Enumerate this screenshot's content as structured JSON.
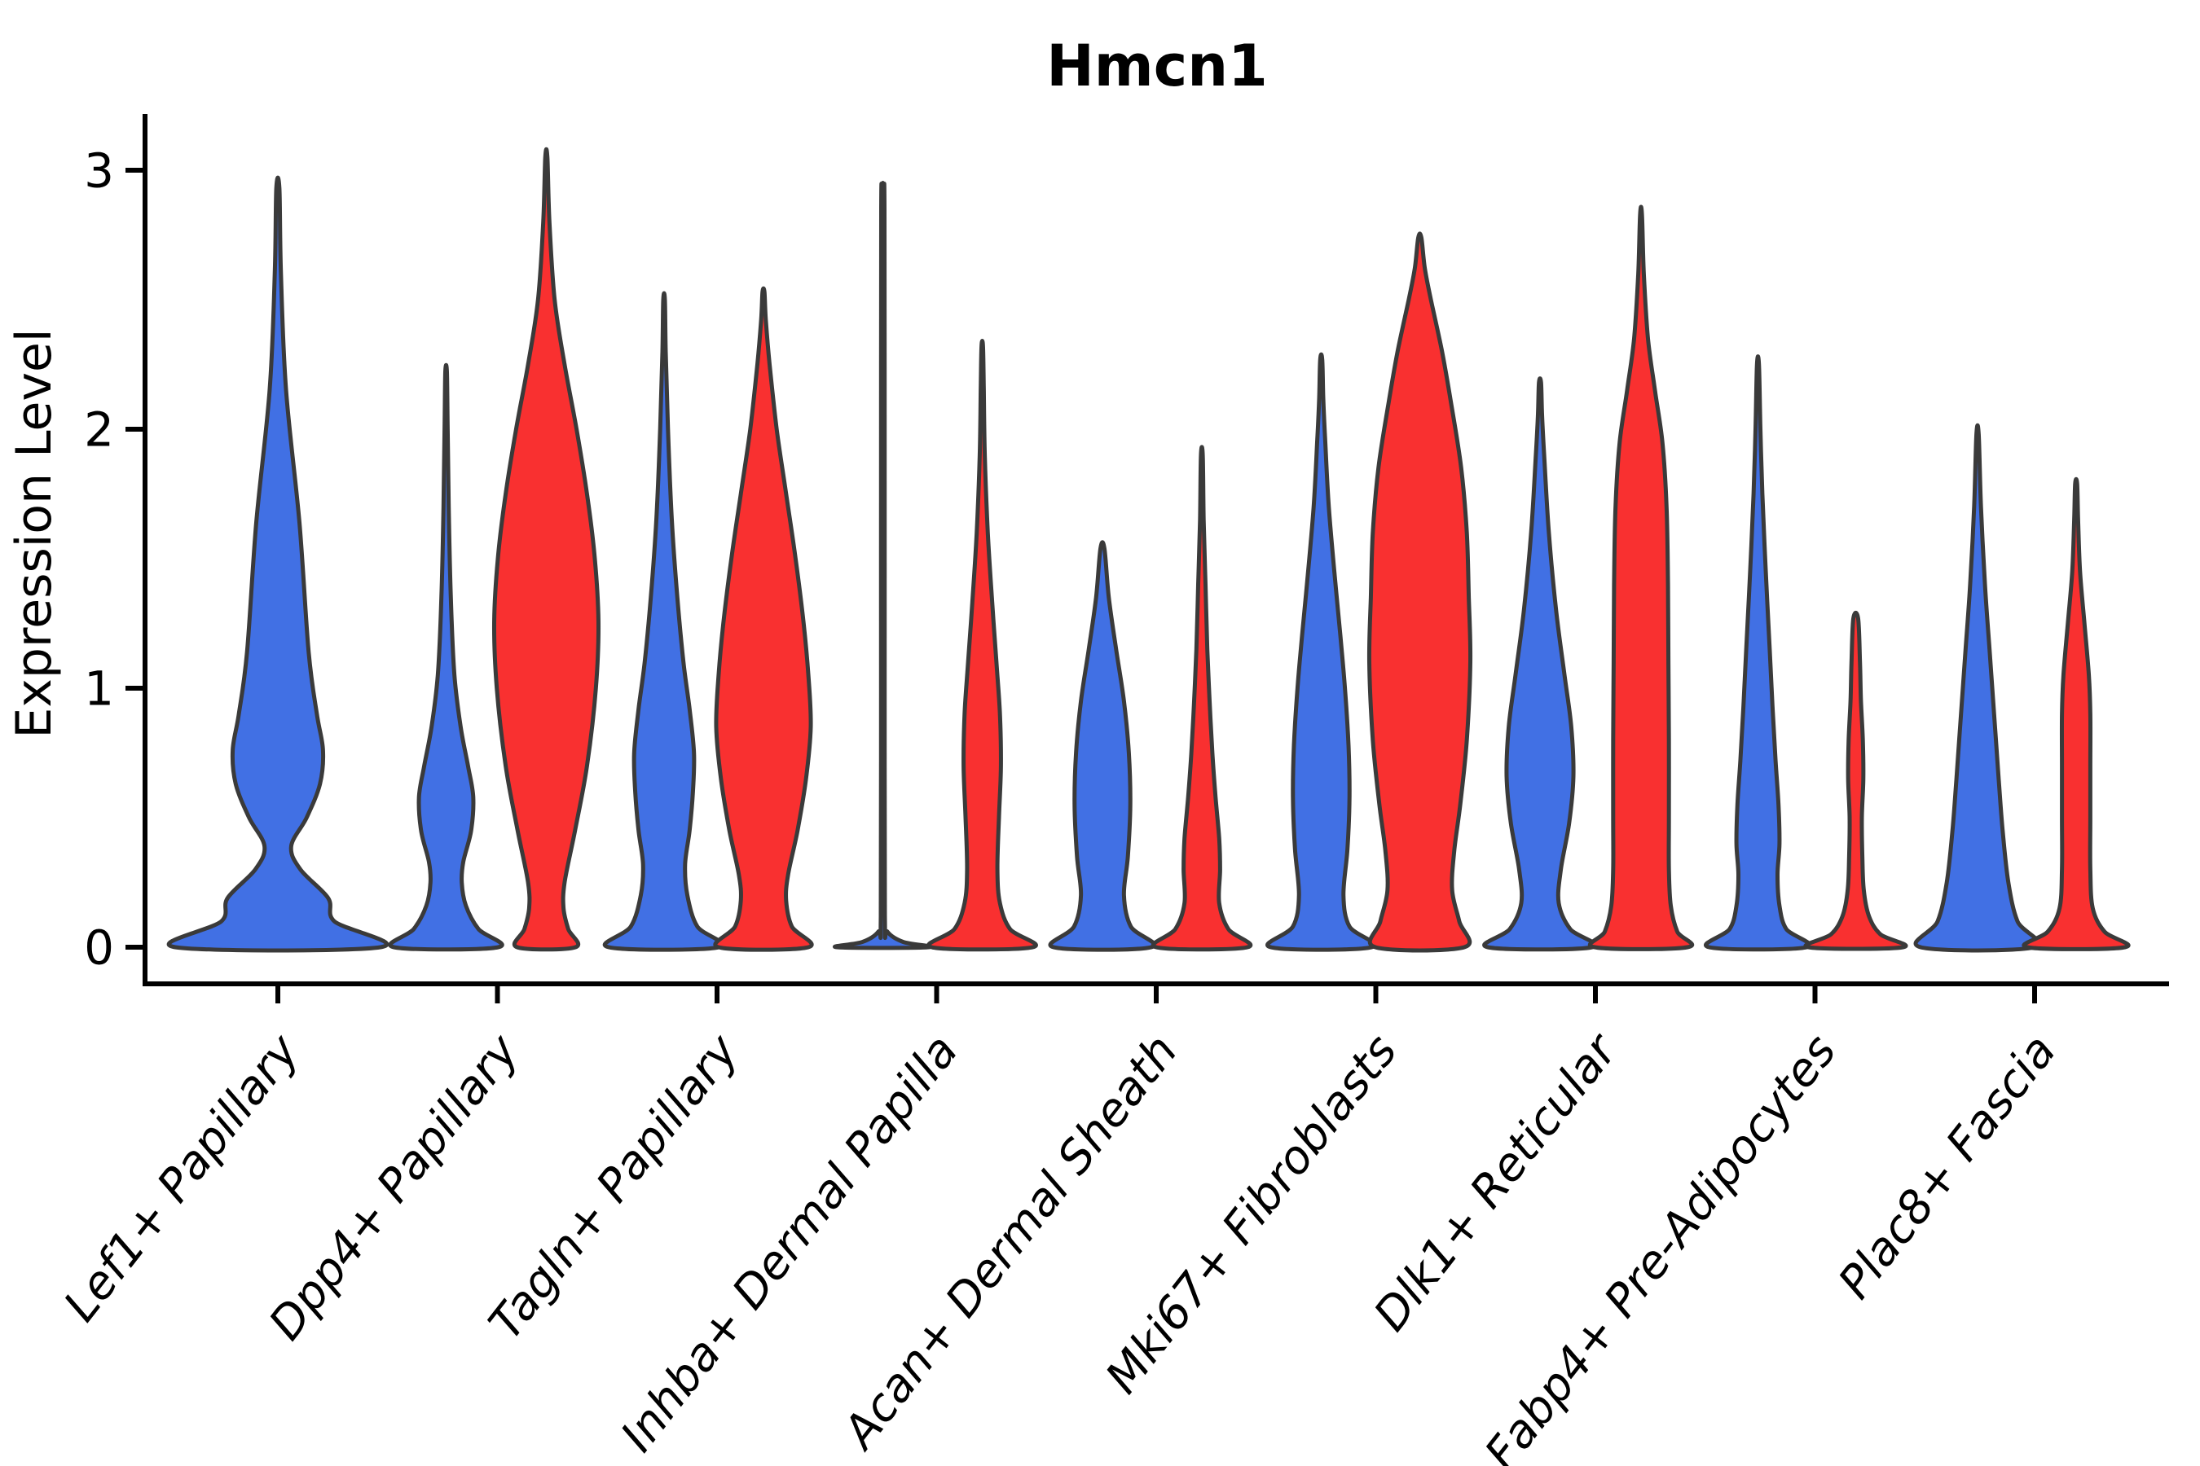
{
  "chart_data": {
    "type": "violin",
    "title": "Hmcn1",
    "xlabel": "",
    "ylabel": "Expression Level",
    "ylim": [
      0,
      3.2
    ],
    "yticks": [
      0,
      1,
      2,
      3
    ],
    "grid": false,
    "legend": "none",
    "outline_color": "#3A3A3A",
    "split_colors": {
      "condition_1_blue": "#4170E4",
      "condition_2_red": "#F93030"
    },
    "categories": [
      "Lef1+ Papillary",
      "Dpp4+ Papillary",
      "Tagln+ Papillary",
      "Inhba+ Dermal Papilla",
      "Acan+ Dermal Sheath",
      "Mki67+ Fibroblasts",
      "Dlk1+ Reticular",
      "Fabp4+ Pre-Adipocytes",
      "Plac8+ Fascia"
    ],
    "violins": [
      {
        "category": "Lef1+ Papillary",
        "split": "blue",
        "color": "#4170E4",
        "center_dx": 0,
        "max_halfwidth": 126,
        "max_expression": 2.93,
        "profile": [
          [
            0,
            1.0
          ],
          [
            0.1,
            0.55
          ],
          [
            0.19,
            0.49
          ],
          [
            0.3,
            0.22
          ],
          [
            0.39,
            0.13
          ],
          [
            0.5,
            0.28
          ],
          [
            0.63,
            0.41
          ],
          [
            0.76,
            0.44
          ],
          [
            0.9,
            0.38
          ],
          [
            1.14,
            0.3
          ],
          [
            1.64,
            0.21
          ],
          [
            2.15,
            0.08
          ],
          [
            2.6,
            0.03
          ],
          [
            2.93,
            0.015
          ]
        ]
      },
      {
        "category": "Dpp4+ Papillary",
        "split": "blue",
        "color": "#4170E4",
        "center_dx": -63,
        "max_halfwidth": 64,
        "max_expression": 2.22,
        "profile": [
          [
            0,
            1.0
          ],
          [
            0.07,
            0.62
          ],
          [
            0.16,
            0.38
          ],
          [
            0.25,
            0.3
          ],
          [
            0.33,
            0.33
          ],
          [
            0.45,
            0.48
          ],
          [
            0.58,
            0.52
          ],
          [
            0.7,
            0.42
          ],
          [
            0.85,
            0.28
          ],
          [
            1.05,
            0.16
          ],
          [
            1.35,
            0.09
          ],
          [
            1.7,
            0.05
          ],
          [
            2.0,
            0.03
          ],
          [
            2.22,
            0.015
          ]
        ]
      },
      {
        "category": "Dpp4+ Papillary",
        "split": "red",
        "color": "#F93030",
        "center_dx": 60,
        "max_halfwidth": 64,
        "max_expression": 3.05,
        "profile": [
          [
            0,
            0.56
          ],
          [
            0.07,
            0.42
          ],
          [
            0.15,
            0.33
          ],
          [
            0.25,
            0.35
          ],
          [
            0.45,
            0.55
          ],
          [
            0.7,
            0.78
          ],
          [
            1.0,
            0.95
          ],
          [
            1.25,
            1.0
          ],
          [
            1.5,
            0.93
          ],
          [
            1.75,
            0.78
          ],
          [
            2.0,
            0.58
          ],
          [
            2.25,
            0.35
          ],
          [
            2.5,
            0.16
          ],
          [
            2.8,
            0.06
          ],
          [
            3.05,
            0.02
          ]
        ]
      },
      {
        "category": "Tagln+ Papillary",
        "split": "blue",
        "color": "#4170E4",
        "center_dx": -65,
        "max_halfwidth": 68,
        "max_expression": 2.5,
        "profile": [
          [
            0,
            1.0
          ],
          [
            0.08,
            0.6
          ],
          [
            0.2,
            0.42
          ],
          [
            0.32,
            0.38
          ],
          [
            0.45,
            0.46
          ],
          [
            0.6,
            0.52
          ],
          [
            0.75,
            0.54
          ],
          [
            0.92,
            0.46
          ],
          [
            1.1,
            0.35
          ],
          [
            1.35,
            0.24
          ],
          [
            1.65,
            0.14
          ],
          [
            2.0,
            0.07
          ],
          [
            2.3,
            0.03
          ],
          [
            2.5,
            0.015
          ]
        ]
      },
      {
        "category": "Tagln+ Papillary",
        "split": "red",
        "color": "#F93030",
        "center_dx": 57,
        "max_halfwidth": 58,
        "max_expression": 2.53,
        "profile": [
          [
            0,
            0.95
          ],
          [
            0.08,
            0.6
          ],
          [
            0.18,
            0.48
          ],
          [
            0.28,
            0.52
          ],
          [
            0.45,
            0.72
          ],
          [
            0.65,
            0.9
          ],
          [
            0.85,
            1.0
          ],
          [
            1.05,
            0.95
          ],
          [
            1.25,
            0.85
          ],
          [
            1.5,
            0.68
          ],
          [
            1.75,
            0.48
          ],
          [
            2.0,
            0.28
          ],
          [
            2.25,
            0.13
          ],
          [
            2.42,
            0.05
          ],
          [
            2.53,
            0.02
          ]
        ]
      },
      {
        "category": "Inhba+ Dermal Papilla",
        "split": "blue",
        "color": "#4170E4",
        "center_dx": -66,
        "max_halfwidth": 56,
        "max_expression": 2.94,
        "profile": [
          [
            0,
            1.0
          ],
          [
            0.02,
            0.45
          ],
          [
            0.06,
            0.1
          ],
          [
            0.12,
            0.045
          ],
          [
            1.0,
            0.04
          ],
          [
            2.0,
            0.04
          ],
          [
            2.85,
            0.035
          ],
          [
            2.94,
            0.02
          ]
        ]
      },
      {
        "category": "Inhba+ Dermal Papilla",
        "split": "red",
        "color": "#F93030",
        "center_dx": 56,
        "max_halfwidth": 62,
        "max_expression": 2.32,
        "profile": [
          [
            0,
            1.0
          ],
          [
            0.07,
            0.55
          ],
          [
            0.17,
            0.35
          ],
          [
            0.3,
            0.3
          ],
          [
            0.5,
            0.33
          ],
          [
            0.7,
            0.37
          ],
          [
            0.9,
            0.35
          ],
          [
            1.1,
            0.28
          ],
          [
            1.35,
            0.19
          ],
          [
            1.6,
            0.11
          ],
          [
            1.9,
            0.05
          ],
          [
            2.15,
            0.03
          ],
          [
            2.32,
            0.015
          ]
        ]
      },
      {
        "category": "Acan+ Dermal Sheath",
        "split": "blue",
        "color": "#4170E4",
        "center_dx": -66,
        "max_halfwidth": 60,
        "max_expression": 1.54,
        "profile": [
          [
            0,
            1.0
          ],
          [
            0.08,
            0.58
          ],
          [
            0.2,
            0.44
          ],
          [
            0.35,
            0.52
          ],
          [
            0.55,
            0.57
          ],
          [
            0.75,
            0.54
          ],
          [
            0.95,
            0.44
          ],
          [
            1.15,
            0.28
          ],
          [
            1.35,
            0.13
          ],
          [
            1.54,
            0.04
          ]
        ]
      },
      {
        "category": "Acan+ Dermal Sheath",
        "split": "red",
        "color": "#F93030",
        "center_dx": 56,
        "max_halfwidth": 56,
        "max_expression": 1.9,
        "profile": [
          [
            0,
            1.0
          ],
          [
            0.07,
            0.58
          ],
          [
            0.17,
            0.38
          ],
          [
            0.3,
            0.4
          ],
          [
            0.42,
            0.38
          ],
          [
            0.58,
            0.3
          ],
          [
            0.75,
            0.23
          ],
          [
            0.95,
            0.17
          ],
          [
            1.15,
            0.12
          ],
          [
            1.4,
            0.08
          ],
          [
            1.65,
            0.04
          ],
          [
            1.9,
            0.02
          ]
        ]
      },
      {
        "category": "Mki67+ Fibroblasts",
        "split": "blue",
        "color": "#4170E4",
        "center_dx": -67,
        "max_halfwidth": 62,
        "max_expression": 2.27,
        "profile": [
          [
            0,
            1.0
          ],
          [
            0.08,
            0.56
          ],
          [
            0.2,
            0.44
          ],
          [
            0.38,
            0.52
          ],
          [
            0.58,
            0.56
          ],
          [
            0.78,
            0.54
          ],
          [
            1.0,
            0.47
          ],
          [
            1.2,
            0.38
          ],
          [
            1.45,
            0.26
          ],
          [
            1.7,
            0.15
          ],
          [
            1.95,
            0.08
          ],
          [
            2.12,
            0.04
          ],
          [
            2.27,
            0.02
          ]
        ]
      },
      {
        "category": "Mki67+ Fibroblasts",
        "split": "red",
        "color": "#F93030",
        "center_dx": 54,
        "max_halfwidth": 62,
        "max_expression": 2.74,
        "profile": [
          [
            0,
            0.88
          ],
          [
            0.1,
            0.78
          ],
          [
            0.22,
            0.64
          ],
          [
            0.37,
            0.68
          ],
          [
            0.55,
            0.8
          ],
          [
            0.8,
            0.93
          ],
          [
            1.1,
            1.0
          ],
          [
            1.35,
            0.97
          ],
          [
            1.6,
            0.93
          ],
          [
            1.85,
            0.82
          ],
          [
            2.1,
            0.62
          ],
          [
            2.3,
            0.44
          ],
          [
            2.5,
            0.22
          ],
          [
            2.62,
            0.1
          ],
          [
            2.74,
            0.03
          ]
        ]
      },
      {
        "category": "Dlk1+ Reticular",
        "split": "blue",
        "color": "#4170E4",
        "center_dx": -68,
        "max_halfwidth": 64,
        "max_expression": 2.18,
        "profile": [
          [
            0,
            1.0
          ],
          [
            0.07,
            0.58
          ],
          [
            0.17,
            0.36
          ],
          [
            0.3,
            0.4
          ],
          [
            0.48,
            0.56
          ],
          [
            0.66,
            0.64
          ],
          [
            0.85,
            0.6
          ],
          [
            1.05,
            0.47
          ],
          [
            1.3,
            0.31
          ],
          [
            1.6,
            0.17
          ],
          [
            1.9,
            0.08
          ],
          [
            2.05,
            0.04
          ],
          [
            2.18,
            0.02
          ]
        ]
      },
      {
        "category": "Dlk1+ Reticular",
        "split": "red",
        "color": "#F93030",
        "center_dx": 56,
        "max_halfwidth": 57,
        "max_expression": 2.83,
        "profile": [
          [
            0,
            1.0
          ],
          [
            0.06,
            0.78
          ],
          [
            0.16,
            0.64
          ],
          [
            0.3,
            0.6
          ],
          [
            0.5,
            0.6
          ],
          [
            0.8,
            0.6
          ],
          [
            1.1,
            0.59
          ],
          [
            1.4,
            0.58
          ],
          [
            1.7,
            0.55
          ],
          [
            1.95,
            0.46
          ],
          [
            2.15,
            0.3
          ],
          [
            2.35,
            0.15
          ],
          [
            2.6,
            0.06
          ],
          [
            2.83,
            0.02
          ]
        ]
      },
      {
        "category": "Fabp4+ Pre-Adipocytes",
        "split": "blue",
        "color": "#4170E4",
        "center_dx": -70,
        "max_halfwidth": 60,
        "max_expression": 2.25,
        "profile": [
          [
            0,
            1.0
          ],
          [
            0.07,
            0.58
          ],
          [
            0.16,
            0.44
          ],
          [
            0.28,
            0.4
          ],
          [
            0.4,
            0.44
          ],
          [
            0.55,
            0.42
          ],
          [
            0.72,
            0.36
          ],
          [
            0.92,
            0.3
          ],
          [
            1.15,
            0.24
          ],
          [
            1.45,
            0.16
          ],
          [
            1.75,
            0.09
          ],
          [
            2.0,
            0.05
          ],
          [
            2.25,
            0.02
          ]
        ]
      },
      {
        "category": "Fabp4+ Pre-Adipocytes",
        "split": "red",
        "color": "#F93030",
        "center_dx": 50,
        "max_halfwidth": 58,
        "max_expression": 1.27,
        "profile": [
          [
            0,
            1.0
          ],
          [
            0.05,
            0.52
          ],
          [
            0.12,
            0.28
          ],
          [
            0.22,
            0.17
          ],
          [
            0.35,
            0.14
          ],
          [
            0.5,
            0.13
          ],
          [
            0.65,
            0.16
          ],
          [
            0.8,
            0.15
          ],
          [
            0.95,
            0.11
          ],
          [
            1.1,
            0.09
          ],
          [
            1.27,
            0.05
          ]
        ]
      },
      {
        "category": "Plac8+ Fascia",
        "split": "blue",
        "color": "#4170E4",
        "center_dx": -70,
        "max_halfwidth": 70,
        "max_expression": 1.98,
        "profile": [
          [
            0,
            1.0
          ],
          [
            0.1,
            0.7
          ],
          [
            0.25,
            0.54
          ],
          [
            0.45,
            0.44
          ],
          [
            0.65,
            0.37
          ],
          [
            0.9,
            0.29
          ],
          [
            1.15,
            0.21
          ],
          [
            1.4,
            0.13
          ],
          [
            1.7,
            0.06
          ],
          [
            1.98,
            0.02
          ]
        ]
      },
      {
        "category": "Plac8+ Fascia",
        "split": "red",
        "color": "#F93030",
        "center_dx": 51,
        "max_halfwidth": 60,
        "max_expression": 1.79,
        "profile": [
          [
            0,
            1.0
          ],
          [
            0.06,
            0.58
          ],
          [
            0.15,
            0.34
          ],
          [
            0.3,
            0.29
          ],
          [
            0.5,
            0.29
          ],
          [
            0.7,
            0.29
          ],
          [
            0.9,
            0.29
          ],
          [
            1.05,
            0.26
          ],
          [
            1.25,
            0.17
          ],
          [
            1.45,
            0.08
          ],
          [
            1.65,
            0.04
          ],
          [
            1.79,
            0.02
          ]
        ]
      }
    ]
  }
}
